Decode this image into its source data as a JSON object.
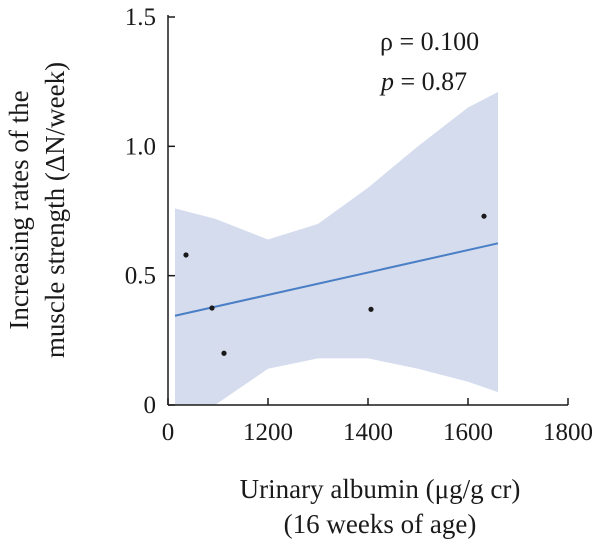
{
  "chart_data": {
    "type": "scatter",
    "title": "",
    "xlabel_lines": [
      "Urinary albumin (μg/g cr)",
      "(16 weeks of age)"
    ],
    "ylabel_lines": [
      "Increasing rates of the",
      "muscle strength (ΔN/week)"
    ],
    "x_tick_labels": [
      "0",
      "1200",
      "1400",
      "1600",
      "1800"
    ],
    "y_tick_labels": [
      "0",
      "0.5",
      "1.0",
      "1.5"
    ],
    "ylim": [
      0,
      1.5
    ],
    "x_axis_break": {
      "before": 0,
      "after": 1200
    },
    "points": [
      {
        "x": 30,
        "y": 0.58
      },
      {
        "x": 80,
        "y": 0.375
      },
      {
        "x": 100,
        "y": 0.2
      },
      {
        "x": 1403,
        "y": 0.37
      },
      {
        "x": 1632,
        "y": 0.73
      }
    ],
    "regression_line": {
      "x": [
        0,
        1660
      ],
      "y": [
        0.345,
        0.625
      ],
      "color": "#4a7fc6"
    },
    "confidence_band": {
      "color": "#d5dcee",
      "x": [
        0,
        100,
        200,
        1200,
        1300,
        1400,
        1500,
        1600,
        1660
      ],
      "upper": [
        0.76,
        0.74,
        0.72,
        0.64,
        0.7,
        0.84,
        1.0,
        1.15,
        1.21
      ],
      "lower": [
        -0.07,
        -0.04,
        0.0,
        0.14,
        0.18,
        0.18,
        0.14,
        0.09,
        0.05
      ]
    },
    "annotation": {
      "rho_symbol": "ρ",
      "rho_text": " = 0.100",
      "p_symbol": "p",
      "p_text": " = 0.87"
    },
    "grid": false,
    "point_color": "#1a1a1a"
  }
}
